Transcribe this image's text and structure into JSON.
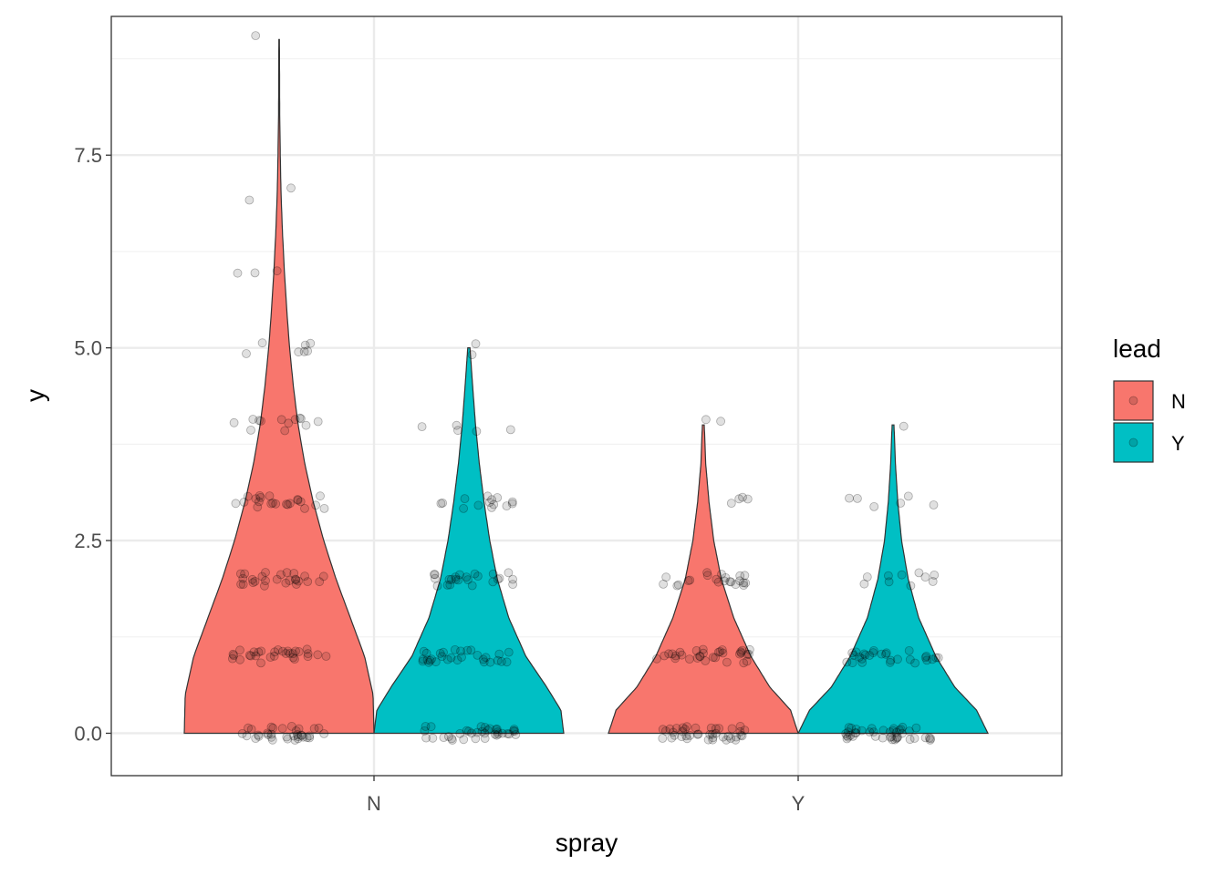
{
  "chart_data": {
    "type": "violin",
    "xlabel": "spray",
    "ylabel": "y",
    "categories": [
      "N",
      "Y"
    ],
    "ylim": [
      -0.55,
      9.3
    ],
    "yticks": [
      0.0,
      2.5,
      5.0,
      7.5
    ],
    "ytick_labels": [
      "0.0",
      "2.5",
      "5.0",
      "7.5"
    ],
    "grid": true,
    "legend": {
      "title": "lead",
      "position": "right",
      "entries": [
        {
          "label": "N",
          "color": "#F8766D"
        },
        {
          "label": "Y",
          "color": "#00BFC4"
        }
      ]
    },
    "series": [
      {
        "group": "N",
        "lead": "N",
        "color": "#F8766D",
        "density": [
          [
            0,
            1
          ],
          [
            0.5,
            0.99
          ],
          [
            1,
            0.9
          ],
          [
            1.5,
            0.75
          ],
          [
            2,
            0.6
          ],
          [
            2.5,
            0.47
          ],
          [
            3,
            0.36
          ],
          [
            3.5,
            0.27
          ],
          [
            4,
            0.2
          ],
          [
            4.5,
            0.15
          ],
          [
            5,
            0.11
          ],
          [
            5.5,
            0.08
          ],
          [
            6,
            0.055
          ],
          [
            6.5,
            0.035
          ],
          [
            7,
            0.02
          ],
          [
            7.5,
            0.012
          ],
          [
            8,
            0.006
          ],
          [
            9,
            0.003
          ]
        ],
        "points": [
          {
            "y": 0,
            "n": 34
          },
          {
            "y": 1,
            "n": 30
          },
          {
            "y": 2,
            "n": 26
          },
          {
            "y": 3,
            "n": 22
          },
          {
            "y": 4,
            "n": 13
          },
          {
            "y": 5,
            "n": 7
          },
          {
            "y": 6,
            "n": 3
          },
          {
            "y": 7,
            "n": 2
          },
          {
            "y": 9,
            "n": 1
          }
        ]
      },
      {
        "group": "N",
        "lead": "Y",
        "color": "#00BFC4",
        "density": [
          [
            0,
            1
          ],
          [
            0.3,
            0.97
          ],
          [
            0.6,
            0.82
          ],
          [
            1,
            0.6
          ],
          [
            1.5,
            0.42
          ],
          [
            2,
            0.3
          ],
          [
            2.5,
            0.22
          ],
          [
            3,
            0.16
          ],
          [
            3.5,
            0.11
          ],
          [
            4,
            0.07
          ],
          [
            4.5,
            0.04
          ],
          [
            5,
            0.012
          ]
        ],
        "points": [
          {
            "y": 0,
            "n": 36
          },
          {
            "y": 1,
            "n": 30
          },
          {
            "y": 2,
            "n": 24
          },
          {
            "y": 3,
            "n": 14
          },
          {
            "y": 4,
            "n": 5
          },
          {
            "y": 5,
            "n": 2
          }
        ]
      },
      {
        "group": "Y",
        "lead": "N",
        "color": "#F8766D",
        "density": [
          [
            0,
            1
          ],
          [
            0.3,
            0.92
          ],
          [
            0.6,
            0.7
          ],
          [
            1,
            0.5
          ],
          [
            1.5,
            0.32
          ],
          [
            2,
            0.19
          ],
          [
            2.5,
            0.11
          ],
          [
            3,
            0.06
          ],
          [
            3.5,
            0.025
          ],
          [
            4,
            0.01
          ]
        ],
        "points": [
          {
            "y": 0,
            "n": 40
          },
          {
            "y": 1,
            "n": 32
          },
          {
            "y": 2,
            "n": 22
          },
          {
            "y": 3,
            "n": 4
          },
          {
            "y": 4,
            "n": 2
          }
        ]
      },
      {
        "group": "Y",
        "lead": "Y",
        "color": "#00BFC4",
        "density": [
          [
            0,
            1
          ],
          [
            0.3,
            0.88
          ],
          [
            0.6,
            0.65
          ],
          [
            1,
            0.45
          ],
          [
            1.5,
            0.27
          ],
          [
            2,
            0.16
          ],
          [
            2.5,
            0.09
          ],
          [
            3,
            0.05
          ],
          [
            3.5,
            0.025
          ],
          [
            4,
            0.01
          ]
        ],
        "points": [
          {
            "y": 0,
            "n": 42
          },
          {
            "y": 1,
            "n": 28
          },
          {
            "y": 2,
            "n": 10
          },
          {
            "y": 3,
            "n": 6
          },
          {
            "y": 4,
            "n": 1
          }
        ]
      }
    ]
  }
}
